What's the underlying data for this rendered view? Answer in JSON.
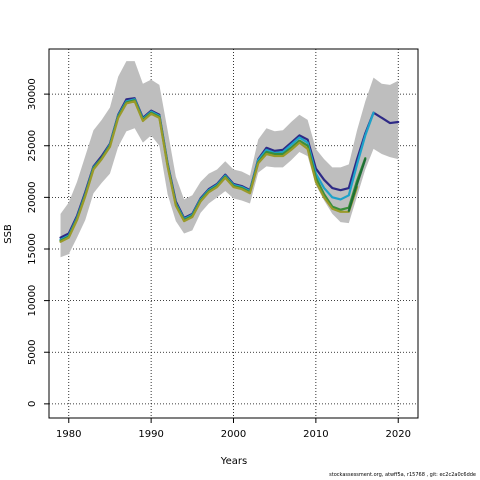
{
  "chart_data": {
    "type": "line",
    "xlabel": "Years",
    "ylabel": "SSB",
    "xlim": [
      1977.6,
      2022.4
    ],
    "ylim": [
      -1370,
      34370
    ],
    "x_ticks": [
      1980,
      1990,
      2000,
      2010,
      2020
    ],
    "y_ticks": [
      0,
      5000,
      10000,
      15000,
      20000,
      25000,
      30000
    ],
    "grid": true,
    "grid_style": "dotted",
    "band": {
      "color": "#bebebe",
      "x": [
        1979,
        1980,
        1981,
        1982,
        1983,
        1984,
        1985,
        1986,
        1987,
        1988,
        1989,
        1990,
        1991,
        1992,
        1993,
        1994,
        1995,
        1996,
        1997,
        1998,
        1999,
        2000,
        2001,
        2002,
        2003,
        2004,
        2005,
        2006,
        2007,
        2008,
        2009,
        2010,
        2011,
        2012,
        2013,
        2014,
        2015,
        2016,
        2017,
        2018,
        2019,
        2020
      ],
      "upper": [
        18400,
        19500,
        21500,
        24000,
        26500,
        27500,
        28700,
        31700,
        33200,
        33200,
        31000,
        31400,
        30900,
        26500,
        22000,
        19800,
        20200,
        21500,
        22300,
        22700,
        23500,
        22700,
        22500,
        22100,
        25600,
        26700,
        26400,
        26500,
        27300,
        28000,
        27500,
        24700,
        23700,
        22900,
        22900,
        23200,
        26500,
        29300,
        31600,
        31000,
        30900,
        31300
      ],
      "lower": [
        14200,
        14500,
        16100,
        17800,
        20400,
        21400,
        22300,
        24900,
        26400,
        26700,
        25300,
        26000,
        25000,
        20300,
        17700,
        16500,
        16800,
        18500,
        19400,
        20000,
        20600,
        19900,
        19700,
        19400,
        22400,
        23000,
        22900,
        22900,
        23600,
        24400,
        24000,
        21200,
        19700,
        18400,
        17600,
        17500,
        20100,
        22700,
        24700,
        24200,
        23900,
        23700
      ]
    },
    "series": [
      {
        "color": "#2e2a86",
        "x": [
          1979,
          1980,
          1981,
          1982,
          1983,
          1984,
          1985,
          1986,
          1987,
          1988,
          1989,
          1990,
          1991,
          1992,
          1993,
          1994,
          1995,
          1996,
          1997,
          1998,
          1999,
          2000,
          2001,
          2002,
          2003,
          2004,
          2005,
          2006,
          2007,
          2008,
          2009,
          2010,
          2011,
          2012,
          2013,
          2014,
          2015,
          2016,
          2017,
          2018,
          2019,
          2020
        ],
        "values": [
          16100,
          16500,
          18200,
          20500,
          23000,
          24000,
          25200,
          28000,
          29500,
          29600,
          27700,
          28400,
          28000,
          23300,
          19600,
          18000,
          18400,
          19900,
          20800,
          21300,
          22200,
          21300,
          21100,
          20700,
          23700,
          24800,
          24500,
          24600,
          25300,
          26000,
          25600,
          22800,
          21700,
          20900,
          20700,
          20900,
          23700,
          26200,
          28200,
          27700,
          27200,
          27300
        ]
      },
      {
        "color": "#1da2c9",
        "x": [
          1979,
          1980,
          1981,
          1982,
          1983,
          1984,
          1985,
          1986,
          1987,
          1988,
          1989,
          1990,
          1991,
          1992,
          1993,
          1994,
          1995,
          1996,
          1997,
          1998,
          1999,
          2000,
          2001,
          2002,
          2003,
          2004,
          2005,
          2006,
          2007,
          2008,
          2009,
          2010,
          2011,
          2012,
          2013,
          2014,
          2015,
          2016,
          2017
        ],
        "values": [
          15900,
          16300,
          18000,
          20300,
          22900,
          23800,
          25100,
          27900,
          29300,
          29500,
          27600,
          28300,
          27900,
          23200,
          19400,
          17900,
          18300,
          19800,
          20700,
          21200,
          22100,
          21200,
          21000,
          20600,
          23600,
          24600,
          24300,
          24400,
          25100,
          25800,
          25300,
          22300,
          20900,
          20000,
          19800,
          20200,
          23200,
          26000,
          28200
        ]
      },
      {
        "color": "#3a8f3a",
        "x": [
          1979,
          1980,
          1981,
          1982,
          1983,
          1984,
          1985,
          1986,
          1987,
          1988,
          1989,
          1990,
          1991,
          1992,
          1993,
          1994,
          1995,
          1996,
          1997,
          1998,
          1999,
          2000,
          2001,
          2002,
          2003,
          2004,
          2005,
          2006,
          2007,
          2008,
          2009,
          2010,
          2011,
          2012,
          2013,
          2014,
          2015,
          2016
        ],
        "values": [
          15800,
          16200,
          17900,
          20200,
          22800,
          23800,
          25000,
          27800,
          29200,
          29400,
          27500,
          28200,
          27800,
          23100,
          19300,
          17800,
          18200,
          19700,
          20600,
          21100,
          22000,
          21100,
          20900,
          20500,
          23400,
          24400,
          24200,
          24200,
          24800,
          25500,
          25000,
          21900,
          20300,
          19100,
          18800,
          19000,
          21600,
          23800
        ]
      },
      {
        "color": "#9a9a2a",
        "x": [
          1979,
          1980,
          1981,
          1982,
          1983,
          1984,
          1985,
          1986,
          1987,
          1988,
          1989,
          1990,
          1991,
          1992,
          1993,
          1994,
          1995,
          1996,
          1997,
          1998,
          1999,
          2000,
          2001,
          2002,
          2003,
          2004,
          2005,
          2006,
          2007,
          2008,
          2009,
          2010,
          2011,
          2012,
          2013,
          2014,
          2015
        ],
        "values": [
          15700,
          16100,
          17800,
          20100,
          22700,
          23700,
          24900,
          27700,
          29100,
          29300,
          27400,
          28100,
          27700,
          23000,
          19200,
          17700,
          18100,
          19600,
          20500,
          21000,
          21900,
          21000,
          20800,
          20400,
          23300,
          24200,
          24000,
          24000,
          24600,
          25300,
          24700,
          21500,
          20000,
          18900,
          18600,
          18600,
          21000
        ]
      },
      {
        "color": "#1d6e35",
        "x": [
          2014,
          2015,
          2016
        ],
        "values": [
          18700,
          21300,
          23700
        ]
      }
    ]
  },
  "footer": {
    "credit": "stockassessment.org, atwff5a,  r15768 ,  git:  ec2c2a0c6dde"
  }
}
